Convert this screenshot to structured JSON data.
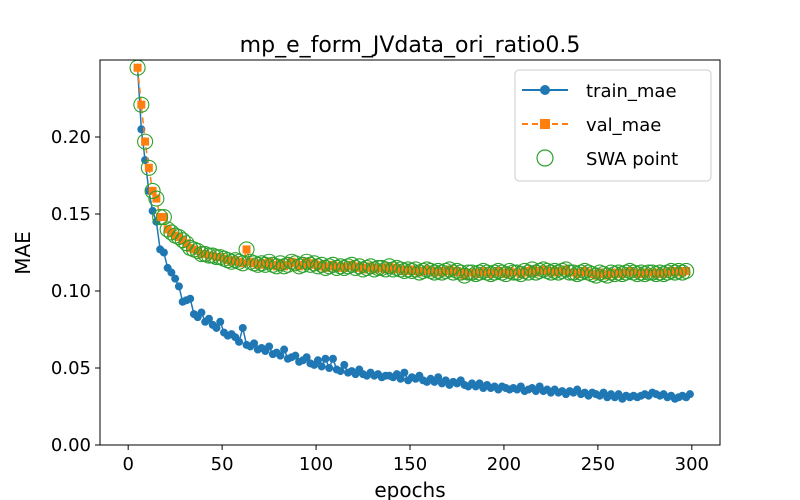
{
  "chart_data": {
    "type": "line",
    "title": "mp_e_form_JVdata_ori_ratio0.5",
    "xlabel": "epochs",
    "ylabel": "MAE",
    "xlim": [
      -15,
      315
    ],
    "ylim": [
      0,
      0.25
    ],
    "xticks": [
      0,
      50,
      100,
      150,
      200,
      250,
      300
    ],
    "xtick_labels": [
      "0",
      "50",
      "100",
      "150",
      "200",
      "250",
      "300"
    ],
    "yticks": [
      0,
      0.05,
      0.1,
      0.15,
      0.2
    ],
    "ytick_labels": [
      "0.00",
      "0.05",
      "0.10",
      "0.15",
      "0.20"
    ],
    "legend_position": "top-right",
    "colors": {
      "train": "#1f77b4",
      "val": "#ff7f0e",
      "swa": "#2ca02c"
    },
    "series": [
      {
        "name": "train_mae",
        "label": "train_mae",
        "style": "line-circle",
        "x_start": 5,
        "x_step": 2,
        "values": [
          0.245,
          0.205,
          0.185,
          0.165,
          0.152,
          0.145,
          0.127,
          0.125,
          0.115,
          0.112,
          0.108,
          0.103,
          0.093,
          0.094,
          0.095,
          0.085,
          0.083,
          0.086,
          0.08,
          0.082,
          0.078,
          0.076,
          0.08,
          0.073,
          0.071,
          0.072,
          0.07,
          0.067,
          0.076,
          0.065,
          0.064,
          0.066,
          0.062,
          0.063,
          0.061,
          0.064,
          0.059,
          0.06,
          0.058,
          0.062,
          0.056,
          0.057,
          0.058,
          0.054,
          0.055,
          0.057,
          0.053,
          0.052,
          0.055,
          0.051,
          0.056,
          0.05,
          0.056,
          0.049,
          0.048,
          0.052,
          0.047,
          0.048,
          0.046,
          0.049,
          0.046,
          0.045,
          0.047,
          0.045,
          0.046,
          0.044,
          0.045,
          0.045,
          0.044,
          0.046,
          0.043,
          0.047,
          0.042,
          0.044,
          0.043,
          0.045,
          0.042,
          0.041,
          0.043,
          0.041,
          0.044,
          0.04,
          0.042,
          0.039,
          0.041,
          0.04,
          0.042,
          0.039,
          0.038,
          0.04,
          0.038,
          0.04,
          0.037,
          0.039,
          0.037,
          0.038,
          0.036,
          0.038,
          0.037,
          0.036,
          0.037,
          0.036,
          0.038,
          0.035,
          0.036,
          0.037,
          0.035,
          0.038,
          0.035,
          0.036,
          0.034,
          0.036,
          0.034,
          0.035,
          0.033,
          0.035,
          0.034,
          0.036,
          0.033,
          0.034,
          0.032,
          0.034,
          0.033,
          0.032,
          0.034,
          0.031,
          0.033,
          0.031,
          0.033,
          0.03,
          0.032,
          0.031,
          0.032,
          0.031,
          0.032,
          0.033,
          0.032,
          0.034,
          0.033,
          0.032,
          0.033,
          0.031,
          0.032,
          0.03,
          0.031,
          0.032,
          0.031,
          0.033
        ]
      },
      {
        "name": "val_mae",
        "label": "val_mae",
        "style": "dashed-square",
        "x_start": 5,
        "x_step": 2,
        "values": [
          0.245,
          0.221,
          0.197,
          0.18,
          0.165,
          0.16,
          0.148,
          0.148,
          0.14,
          0.138,
          0.136,
          0.135,
          0.133,
          0.131,
          0.128,
          0.127,
          0.126,
          0.124,
          0.124,
          0.123,
          0.123,
          0.122,
          0.122,
          0.121,
          0.12,
          0.119,
          0.12,
          0.119,
          0.118,
          0.127,
          0.119,
          0.118,
          0.117,
          0.118,
          0.117,
          0.119,
          0.117,
          0.116,
          0.118,
          0.116,
          0.117,
          0.119,
          0.118,
          0.116,
          0.117,
          0.119,
          0.117,
          0.118,
          0.116,
          0.117,
          0.115,
          0.116,
          0.117,
          0.115,
          0.116,
          0.115,
          0.116,
          0.117,
          0.115,
          0.116,
          0.114,
          0.115,
          0.116,
          0.114,
          0.115,
          0.115,
          0.114,
          0.116,
          0.114,
          0.115,
          0.114,
          0.113,
          0.114,
          0.113,
          0.114,
          0.112,
          0.113,
          0.114,
          0.113,
          0.112,
          0.113,
          0.112,
          0.113,
          0.114,
          0.112,
          0.113,
          0.112,
          0.11,
          0.112,
          0.112,
          0.111,
          0.112,
          0.113,
          0.112,
          0.111,
          0.112,
          0.113,
          0.112,
          0.111,
          0.113,
          0.112,
          0.112,
          0.111,
          0.113,
          0.112,
          0.114,
          0.112,
          0.113,
          0.114,
          0.113,
          0.112,
          0.113,
          0.112,
          0.113,
          0.114,
          0.112,
          0.112,
          0.111,
          0.112,
          0.113,
          0.112,
          0.111,
          0.11,
          0.112,
          0.111,
          0.11,
          0.112,
          0.111,
          0.112,
          0.111,
          0.112,
          0.113,
          0.112,
          0.111,
          0.112,
          0.111,
          0.112,
          0.112,
          0.111,
          0.112,
          0.111,
          0.112,
          0.113,
          0.112,
          0.113,
          0.112,
          0.113
        ]
      },
      {
        "name": "swa_point",
        "label": "SWA point",
        "style": "hollow-circle",
        "follows": "val_mae"
      }
    ]
  }
}
